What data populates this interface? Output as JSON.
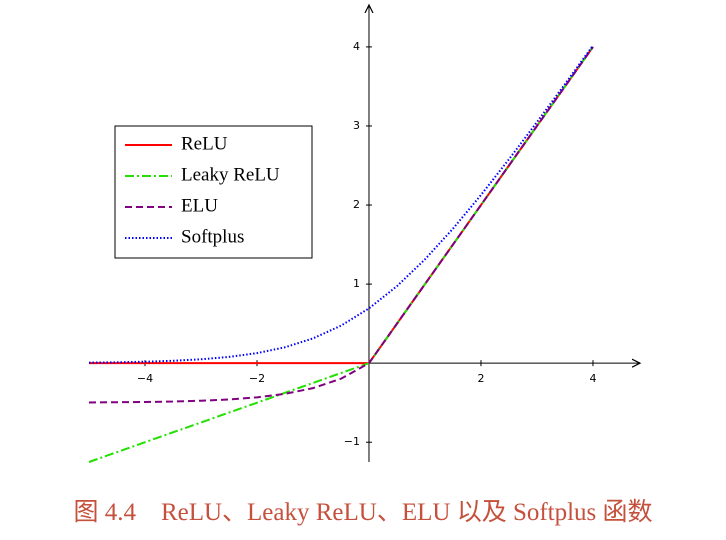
{
  "chart_data": {
    "type": "line",
    "caption": "图 4.4　ReLU、Leaky ReLU、ELU 以及 Softplus 函数",
    "x": [
      -5,
      -4.5,
      -4,
      -3.5,
      -3,
      -2.5,
      -2,
      -1.5,
      -1,
      -0.5,
      0,
      0.5,
      1,
      1.5,
      2,
      2.5,
      3,
      3.5,
      4
    ],
    "series": [
      {
        "name": "ReLU",
        "color": "#ff0000",
        "dash": "solid",
        "values": [
          0,
          0,
          0,
          0,
          0,
          0,
          0,
          0,
          0,
          0,
          0,
          0.5,
          1,
          1.5,
          2,
          2.5,
          3,
          3.5,
          4
        ]
      },
      {
        "name": "Leaky ReLU",
        "color": "#22e000",
        "dash": "dashdot",
        "values": [
          -1.25,
          -1.125,
          -1,
          -0.875,
          -0.75,
          -0.625,
          -0.5,
          -0.375,
          -0.25,
          -0.125,
          0,
          0.5,
          1,
          1.5,
          2,
          2.5,
          3,
          3.5,
          4
        ]
      },
      {
        "name": "ELU",
        "color": "#800080",
        "dash": "dashed",
        "values": [
          -0.497,
          -0.494,
          -0.491,
          -0.485,
          -0.475,
          -0.459,
          -0.432,
          -0.388,
          -0.316,
          -0.197,
          0,
          0.5,
          1,
          1.5,
          2,
          2.5,
          3,
          3.5,
          4
        ]
      },
      {
        "name": "Softplus",
        "color": "#0000ff",
        "dash": "dotted",
        "values": [
          0.007,
          0.011,
          0.018,
          0.03,
          0.049,
          0.079,
          0.127,
          0.201,
          0.313,
          0.474,
          0.693,
          0.974,
          1.313,
          1.701,
          2.127,
          2.579,
          3.049,
          3.53,
          4.018
        ]
      }
    ],
    "xlim": [
      -5,
      4.84
    ],
    "ylim": [
      -1.25,
      4.53
    ],
    "xticks": [
      {
        "value": -4,
        "label": "−4"
      },
      {
        "value": -2,
        "label": "−2"
      },
      2,
      4
    ],
    "yticks": [
      {
        "value": -1,
        "label": "−1"
      },
      1,
      2,
      3,
      4
    ],
    "legend": "upper-left"
  }
}
